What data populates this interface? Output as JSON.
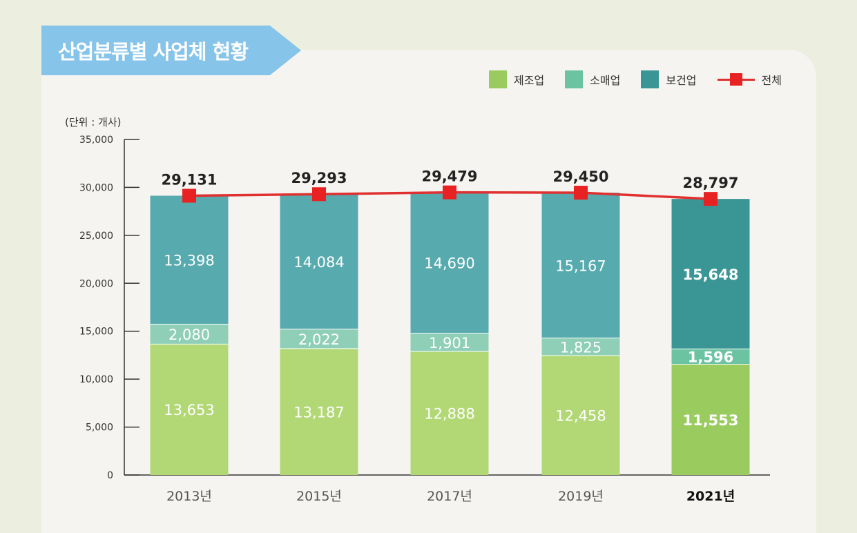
{
  "title": "산업분류별 사업체 현황",
  "unit_label": "(단위 : 개사)",
  "colors": {
    "manufacturing": "#b2d876",
    "manufacturing_highlight": "#99cb5e",
    "retail": "#8fcfb7",
    "retail_highlight": "#6cc3a1",
    "health": "#57aaae",
    "health_highlight": "#3a9695",
    "total_line": "#e03030",
    "total_marker": "#e82222",
    "panel_bg": "#f5f4f1",
    "banner": "#86c4ea"
  },
  "legend": [
    {
      "label": "제조업",
      "color": "#99cb5e",
      "kind": "swatch"
    },
    {
      "label": "소매업",
      "color": "#6cc3a1",
      "kind": "swatch"
    },
    {
      "label": "보건업",
      "color": "#3a9695",
      "kind": "swatch"
    },
    {
      "label": "전체",
      "color": "#e03030",
      "kind": "line"
    }
  ],
  "chart_data": {
    "type": "bar",
    "stacked": true,
    "title": "산업분류별 사업체 현황",
    "unit": "(단위 : 개사)",
    "categories": [
      "2013년",
      "2015년",
      "2017년",
      "2019년",
      "2021년"
    ],
    "highlight_category": "2021년",
    "series": [
      {
        "name": "제조업",
        "values": [
          13653,
          13187,
          12888,
          12458,
          11553
        ]
      },
      {
        "name": "소매업",
        "values": [
          2080,
          2022,
          1901,
          1825,
          1596
        ]
      },
      {
        "name": "보건업",
        "values": [
          13398,
          14084,
          14690,
          15167,
          15648
        ]
      }
    ],
    "line_series": {
      "name": "전체",
      "values": [
        29131,
        29293,
        29479,
        29450,
        28797
      ]
    },
    "y_ticks": [
      0,
      5000,
      10000,
      15000,
      20000,
      25000,
      30000,
      35000
    ],
    "ylim": [
      0,
      35000
    ],
    "legend_position": "top-right"
  }
}
